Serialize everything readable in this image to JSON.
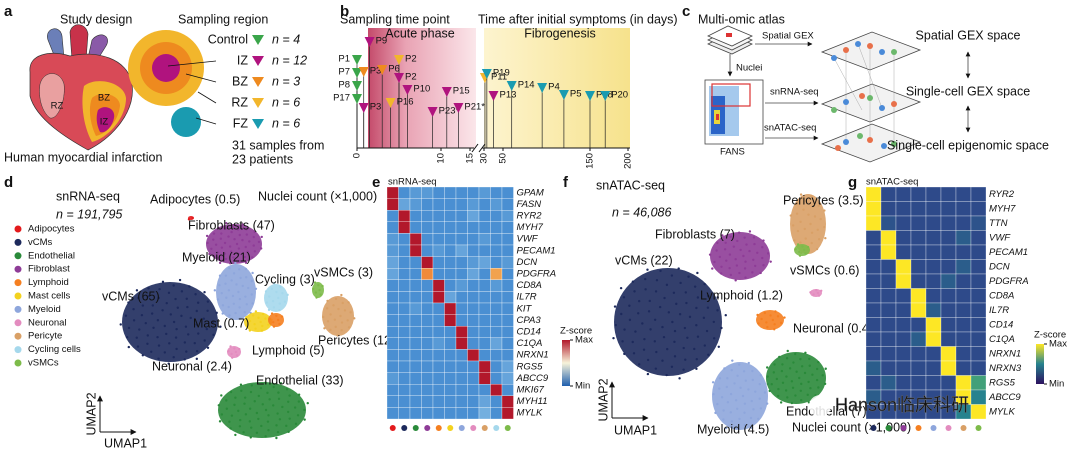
{
  "a": {
    "label": "a",
    "study_design": "Study design",
    "sampling_region": "Sampling region",
    "caption": "Human myocardial infarction",
    "heart_labels": [
      "RZ",
      "BZ",
      "IZ"
    ],
    "regions": [
      {
        "name": "Control",
        "color": "#3aa54a",
        "n": "n = 4"
      },
      {
        "name": "IZ",
        "color": "#b0137e",
        "n": "n = 12"
      },
      {
        "name": "BZ",
        "color": "#ee8a1f",
        "n": "n = 3"
      },
      {
        "name": "RZ",
        "color": "#f2b62c",
        "n": "n = 6"
      },
      {
        "name": "FZ",
        "color": "#1a9bb0",
        "n": "n = 6"
      }
    ],
    "samples": "31 samples from",
    "patients": "23 patients"
  },
  "b": {
    "label": "b",
    "title_left": "Sampling time point",
    "title_right": "Time after initial symptoms (in days)",
    "acute": "Acute phase",
    "fibro": "Fibrogenesis",
    "xticks": [
      0,
      10,
      15,
      30,
      50,
      150,
      200
    ],
    "markers": [
      {
        "label": "P1",
        "color": "#3aa54a",
        "day": 0
      },
      {
        "label": "P7",
        "color": "#3aa54a",
        "day": 0
      },
      {
        "label": "P8",
        "color": "#3aa54a",
        "day": 0
      },
      {
        "label": "P17",
        "color": "#3aa54a",
        "day": 0
      },
      {
        "label": "P9",
        "color": "#b0137e",
        "day": 1.5
      },
      {
        "label": "P3",
        "color": "#ee8a1f",
        "day": 0.8
      },
      {
        "label": "P3",
        "color": "#b0137e",
        "day": 0.8
      },
      {
        "label": "P6",
        "color": "#ee8a1f",
        "day": 3
      },
      {
        "label": "P2",
        "color": "#f2b62c",
        "day": 5
      },
      {
        "label": "P2",
        "color": "#b0137e",
        "day": 5
      },
      {
        "label": "P10",
        "color": "#b0137e",
        "day": 6
      },
      {
        "label": "P16",
        "color": "#f2b62c",
        "day": 4
      },
      {
        "label": "P23*",
        "color": "#b0137e",
        "day": 9
      },
      {
        "label": "P15",
        "color": "#b0137e",
        "day": 11
      },
      {
        "label": "P21*",
        "color": "#b0137e",
        "day": 13
      },
      {
        "label": "P11",
        "color": "#f2b62c",
        "day": 31
      },
      {
        "label": "P19",
        "color": "#1a9bb0",
        "day": 33
      },
      {
        "label": "P13",
        "color": "#b0137e",
        "day": 40
      },
      {
        "label": "P14",
        "color": "#1a9bb0",
        "day": 60
      },
      {
        "label": "P4",
        "color": "#1a9bb0",
        "day": 95
      },
      {
        "label": "P5",
        "color": "#1a9bb0",
        "day": 120
      },
      {
        "label": "P18",
        "color": "#1a9bb0",
        "day": 150
      },
      {
        "label": "P20",
        "color": "#1a9bb0",
        "day": 170
      }
    ]
  },
  "c": {
    "label": "c",
    "title": "Multi-omic atlas",
    "spatial_gex": "Spatial GEX",
    "nuclei": "Nuclei",
    "snrna": "snRNA-seq",
    "snatac": "snATAC-seq",
    "fans": "FANS",
    "spaces": [
      "Spatial GEX space",
      "Single-cell GEX space",
      "Single-cell epigenomic space"
    ]
  },
  "d": {
    "label": "d",
    "title": "snRNA-seq",
    "n": "n = 191,795",
    "legend": [
      {
        "name": "Adipocytes",
        "color": "#e31a1c"
      },
      {
        "name": "vCMs",
        "color": "#1d2a5c"
      },
      {
        "name": "Endothelial",
        "color": "#2a8a3a"
      },
      {
        "name": "Fibroblast",
        "color": "#8e3c97"
      },
      {
        "name": "Lymphoid",
        "color": "#f57f20"
      },
      {
        "name": "Mast cells",
        "color": "#f3d21f"
      },
      {
        "name": "Myeloid",
        "color": "#8ea6dc"
      },
      {
        "name": "Neuronal",
        "color": "#e38cbf"
      },
      {
        "name": "Pericyte",
        "color": "#d9a066"
      },
      {
        "name": "Cycling cells",
        "color": "#a5d8ec"
      },
      {
        "name": "vSMCs",
        "color": "#7dbb4a"
      }
    ],
    "clusters": [
      "Adipocytes (0.5)",
      "Nuclei count (×1,000)",
      "Fibroblasts (47)",
      "Myeloid (21)",
      "vCMs (65)",
      "Cycling (3)",
      "vSMCs (3)",
      "Mast (0.7)",
      "Pericytes (12)",
      "Lymphoid (5)",
      "Neuronal (2.4)",
      "Endothelial (33)"
    ],
    "umap1": "UMAP1",
    "umap2": "UMAP2"
  },
  "e": {
    "label": "e",
    "title": "snRNA-seq",
    "colorbar_title": "Z-score",
    "zticks": [
      {
        "value": 1,
        "label": "Max"
      },
      {
        "value": 0,
        "label": "Min"
      }
    ],
    "genes": [
      "GPAM",
      "FASN",
      "RYR2",
      "MYH7",
      "VWF",
      "PECAM1",
      "DCN",
      "PDGFRA",
      "CD8A",
      "IL7R",
      "KIT",
      "CPA3",
      "CD14",
      "C1QA",
      "NRXN1",
      "RGS5",
      "ABCC9",
      "MKI67",
      "MYH11",
      "MYLK"
    ],
    "matrix": [
      [
        1,
        0.2,
        0.25,
        0.25,
        0.2,
        0.2,
        0.2,
        0.2,
        0.25,
        0.2,
        0.2
      ],
      [
        1,
        0.3,
        0.25,
        0.2,
        0.2,
        0.2,
        0.2,
        0.25,
        0.2,
        0.25,
        0.2
      ],
      [
        0.2,
        1,
        0.2,
        0.2,
        0.2,
        0.2,
        0.2,
        0.3,
        0.2,
        0.2,
        0.25
      ],
      [
        0.2,
        1,
        0.2,
        0.2,
        0.2,
        0.2,
        0.2,
        0.2,
        0.2,
        0.2,
        0.2
      ],
      [
        0.25,
        0.2,
        1,
        0.2,
        0.2,
        0.2,
        0.2,
        0.2,
        0.25,
        0.2,
        0.2
      ],
      [
        0.25,
        0.2,
        1,
        0.2,
        0.25,
        0.2,
        0.3,
        0.2,
        0.2,
        0.2,
        0.2
      ],
      [
        0.3,
        0.2,
        0.2,
        1,
        0.2,
        0.2,
        0.2,
        0.25,
        0.3,
        0.2,
        0.25
      ],
      [
        0.3,
        0.2,
        0.2,
        0.8,
        0.2,
        0.2,
        0.2,
        0.3,
        0.2,
        0.75,
        0.2
      ],
      [
        0.2,
        0.2,
        0.2,
        0.2,
        1,
        0.2,
        0.25,
        0.2,
        0.2,
        0.25,
        0.2
      ],
      [
        0.2,
        0.2,
        0.2,
        0.2,
        1,
        0.3,
        0.2,
        0.2,
        0.2,
        0.2,
        0.2
      ],
      [
        0.2,
        0.2,
        0.25,
        0.2,
        0.2,
        1,
        0.2,
        0.2,
        0.2,
        0.2,
        0.2
      ],
      [
        0.2,
        0.2,
        0.2,
        0.2,
        0.2,
        1,
        0.2,
        0.2,
        0.2,
        0.2,
        0.2
      ],
      [
        0.2,
        0.2,
        0.2,
        0.2,
        0.2,
        0.2,
        1,
        0.2,
        0.2,
        0.2,
        0.2
      ],
      [
        0.2,
        0.2,
        0.2,
        0.2,
        0.25,
        0.2,
        1,
        0.2,
        0.2,
        0.3,
        0.2
      ],
      [
        0.2,
        0.2,
        0.2,
        0.2,
        0.2,
        0.2,
        0.2,
        1,
        0.2,
        0.2,
        0.2
      ],
      [
        0.2,
        0.2,
        0.2,
        0.2,
        0.2,
        0.2,
        0.2,
        0.2,
        1,
        0.2,
        0.3
      ],
      [
        0.25,
        0.2,
        0.2,
        0.2,
        0.2,
        0.2,
        0.2,
        0.2,
        1,
        0.2,
        0.3
      ],
      [
        0.2,
        0.2,
        0.2,
        0.2,
        0.2,
        0.2,
        0.2,
        0.2,
        0.2,
        1,
        0.2
      ],
      [
        0.2,
        0.2,
        0.2,
        0.2,
        0.2,
        0.2,
        0.2,
        0.2,
        0.3,
        0.2,
        1
      ],
      [
        0.2,
        0.2,
        0.2,
        0.2,
        0.2,
        0.2,
        0.2,
        0.2,
        0.35,
        0.2,
        1
      ]
    ]
  },
  "f": {
    "label": "f",
    "title": "snATAC-seq",
    "n": "n = 46,086",
    "clusters": [
      "Pericytes (3.5)",
      "Fibroblasts (7)",
      "vCMs (22)",
      "vSMCs (0.6)",
      "Lymphoid (1.2)",
      "Neuronal (0.4)",
      "Endothelial (7)",
      "Nuclei count (×1,000)",
      "Myeloid (4.5)"
    ],
    "umap1": "UMAP1",
    "umap2": "UMAP2"
  },
  "g": {
    "label": "g",
    "title": "snATAC-seq",
    "colorbar_title": "Z-score",
    "zticks": [
      {
        "value": 1,
        "label": "Max"
      },
      {
        "value": 0,
        "label": "Min"
      }
    ],
    "column_colors": [
      "#1d2a5c",
      "#2a8a3a",
      "#8e3c97",
      "#f57f20",
      "#8ea6dc",
      "#e38cbf",
      "#d9a066",
      "#7dbb4a"
    ],
    "genes": [
      "RYR2",
      "MYH7",
      "TTN",
      "VWF",
      "PECAM1",
      "DCN",
      "PDGFRA",
      "CD8A",
      "IL7R",
      "CD14",
      "C1QA",
      "NRXN1",
      "NRXN3",
      "RGS5",
      "ABCC9",
      "MYLK"
    ],
    "matrix": [
      [
        1,
        0.2,
        0.2,
        0.2,
        0.2,
        0.2,
        0.2,
        0.2
      ],
      [
        1,
        0.2,
        0.2,
        0.2,
        0.2,
        0.2,
        0.2,
        0.2
      ],
      [
        1,
        0.25,
        0.2,
        0.2,
        0.2,
        0.2,
        0.2,
        0.25
      ],
      [
        0.2,
        1,
        0.2,
        0.2,
        0.2,
        0.2,
        0.3,
        0.2
      ],
      [
        0.2,
        1,
        0.2,
        0.2,
        0.2,
        0.2,
        0.2,
        0.2
      ],
      [
        0.2,
        0.2,
        1,
        0.2,
        0.2,
        0.2,
        0.3,
        0.2
      ],
      [
        0.2,
        0.2,
        1,
        0.2,
        0.2,
        0.3,
        0.2,
        0.2
      ],
      [
        0.2,
        0.2,
        0.2,
        1,
        0.2,
        0.2,
        0.2,
        0.2
      ],
      [
        0.2,
        0.2,
        0.2,
        1,
        0.3,
        0.2,
        0.2,
        0.2
      ],
      [
        0.2,
        0.2,
        0.2,
        0.2,
        1,
        0.2,
        0.2,
        0.2
      ],
      [
        0.2,
        0.2,
        0.2,
        0.3,
        1,
        0.2,
        0.2,
        0.2
      ],
      [
        0.2,
        0.2,
        0.2,
        0.2,
        0.2,
        1,
        0.2,
        0.2
      ],
      [
        0.3,
        0.2,
        0.2,
        0.2,
        0.2,
        1,
        0.2,
        0.2
      ],
      [
        0.2,
        0.3,
        0.2,
        0.2,
        0.2,
        0.2,
        1,
        0.6
      ],
      [
        0.3,
        0.2,
        0.2,
        0.2,
        0.2,
        0.2,
        1,
        0.5
      ],
      [
        0.2,
        0.2,
        0.2,
        0.2,
        0.2,
        0.2,
        0.5,
        1
      ]
    ]
  },
  "watermark": "Hanson临床科研"
}
